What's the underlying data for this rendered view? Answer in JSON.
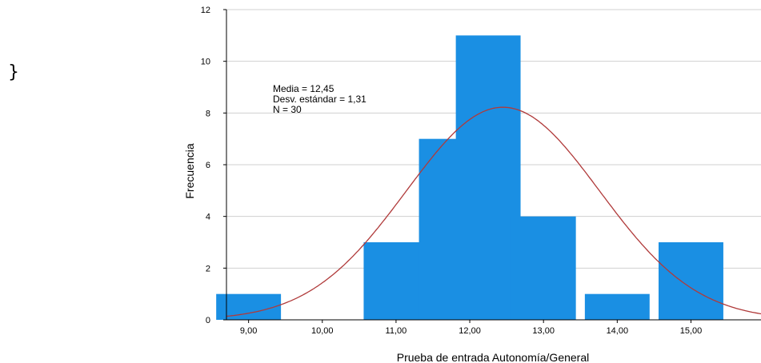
{
  "stray_text": "}",
  "chart_data": {
    "type": "bar",
    "categories": [
      "9,00",
      "10,00",
      "11,00",
      "12,00",
      "13,00",
      "14,00",
      "15,00"
    ],
    "bins": [
      {
        "x": 9.0,
        "value": 1
      },
      {
        "x": 10.0,
        "value": 0
      },
      {
        "x": 11.0,
        "value": 3
      },
      {
        "x": 11.75,
        "value": 7
      },
      {
        "x": 12.25,
        "value": 11
      },
      {
        "x": 13.0,
        "value": 4
      },
      {
        "x": 14.0,
        "value": 1
      },
      {
        "x": 15.0,
        "value": 3
      }
    ],
    "xlabel": "Prueba de entrada Autonomía/General",
    "ylabel": "Frecuencia",
    "ylim": [
      0,
      12
    ],
    "xlim": [
      8.7,
      15.95
    ],
    "yticks": [
      0,
      2,
      4,
      6,
      8,
      10,
      12
    ],
    "normal_curve": {
      "mean": 12.45,
      "sd": 1.31,
      "n": 30
    },
    "stats": [
      "Media = 12,45",
      "Desv. estándar = 1,31",
      "N = 30"
    ],
    "grid": true,
    "colors": {
      "bar": "#1a8fe3",
      "curve": "#b03a3a",
      "grid": "#d0d0d0"
    }
  }
}
